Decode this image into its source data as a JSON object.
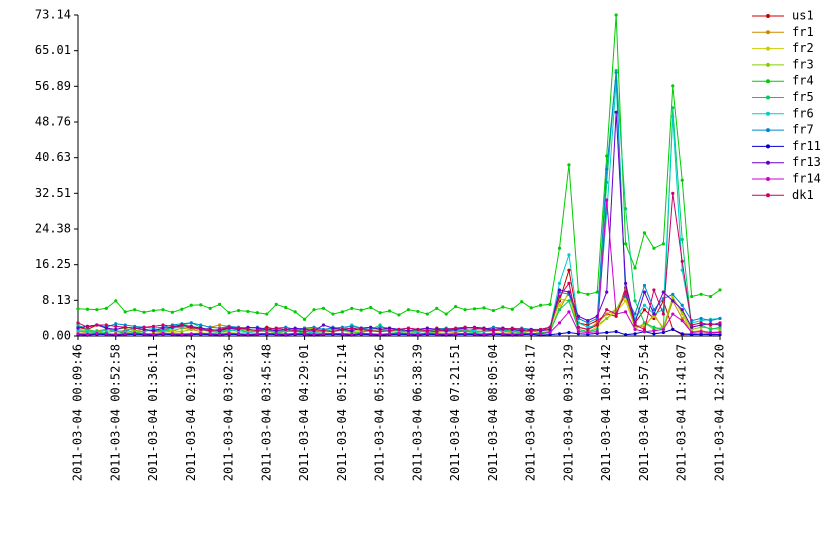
{
  "chart_data": {
    "type": "line",
    "categories": [
      "2011-03-04 00:09:46",
      null,
      null,
      null,
      "2011-03-04 00:52:58",
      null,
      null,
      null,
      "2011-03-04 01:36:11",
      null,
      null,
      null,
      "2011-03-04 02:19:23",
      null,
      null,
      null,
      "2011-03-04 03:02:36",
      null,
      null,
      null,
      "2011-03-04 03:45:48",
      null,
      null,
      null,
      "2011-03-04 04:29:01",
      null,
      null,
      null,
      "2011-03-04 05:12:14",
      null,
      null,
      null,
      "2011-03-04 05:55:26",
      null,
      null,
      null,
      "2011-03-04 06:38:39",
      null,
      null,
      null,
      "2011-03-04 07:21:51",
      null,
      null,
      null,
      "2011-03-04 08:05:04",
      null,
      null,
      null,
      "2011-03-04 08:48:17",
      null,
      null,
      null,
      "2011-03-04 09:31:29",
      null,
      null,
      null,
      "2011-03-04 10:14:42",
      null,
      null,
      null,
      "2011-03-04 10:57:54",
      null,
      null,
      null,
      "2011-03-04 11:41:07",
      null,
      null,
      null,
      "2011-03-04 12:24:20"
    ],
    "ylim": [
      0,
      73.14
    ],
    "yticks": [
      {
        "value": 0,
        "label": "0.00"
      },
      8.13,
      16.25,
      24.38,
      32.51,
      40.63,
      48.76,
      56.89,
      65.01,
      73.14
    ],
    "grid": false,
    "legend": "right",
    "series": [
      {
        "name": "us1",
        "color": "#cc0000",
        "values": [
          2.0,
          1.5,
          2.5,
          2.0,
          1.0,
          1.2,
          1.8,
          1.5,
          1.0,
          1.3,
          2.0,
          2.2,
          1.8,
          1.5,
          1.0,
          1.2,
          2.0,
          1.8,
          1.5,
          1.3,
          2.0,
          1.5,
          1.2,
          1.0,
          1.8,
          1.5,
          1.2,
          2.0,
          1.5,
          1.8,
          1.2,
          1.0,
          1.5,
          1.8,
          1.3,
          1.2,
          1.5,
          1.0,
          1.8,
          1.5,
          1.3,
          1.2,
          1.5,
          1.8,
          1.3,
          1.5,
          1.2,
          1.0,
          1.5,
          1.2,
          2.0,
          8.0,
          15.0,
          3.0,
          2.5,
          3.5,
          5.0,
          4.5,
          11.0,
          3.0,
          6.0,
          4.0,
          8.0,
          1.5,
          0.3,
          0.5,
          0.4,
          0.5,
          0.3
        ]
      },
      {
        "name": "fr1",
        "color": "#cc8800",
        "values": [
          1.0,
          0.8,
          1.2,
          1.5,
          1.0,
          0.8,
          1.2,
          1.5,
          1.0,
          0.8,
          1.2,
          1.8,
          1.5,
          1.0,
          2.0,
          2.5,
          2.2,
          1.8,
          1.5,
          1.2,
          1.0,
          1.5,
          1.2,
          1.0,
          0.8,
          1.2,
          1.0,
          1.5,
          1.2,
          1.0,
          0.8,
          1.2,
          1.5,
          1.0,
          0.8,
          1.2,
          1.0,
          1.5,
          1.2,
          1.0,
          0.8,
          1.2,
          1.0,
          1.2,
          1.5,
          1.0,
          0.8,
          1.2,
          1.0,
          1.5,
          1.2,
          6.0,
          10.0,
          2.0,
          1.5,
          3.0,
          5.0,
          6.0,
          9.0,
          2.5,
          2.0,
          5.0,
          1.5,
          8.0,
          4.0,
          1.0,
          1.2,
          0.8,
          1.0
        ]
      },
      {
        "name": "fr2",
        "color": "#cccc00",
        "values": [
          0.5,
          0.6,
          0.8,
          0.5,
          0.4,
          0.6,
          0.8,
          0.5,
          0.6,
          0.4,
          0.8,
          0.6,
          0.5,
          0.7,
          0.6,
          0.5,
          0.8,
          0.6,
          0.4,
          0.5,
          0.6,
          0.8,
          0.5,
          0.6,
          0.4,
          0.5,
          0.7,
          0.6,
          0.5,
          0.8,
          0.6,
          0.5,
          0.4,
          0.6,
          0.5,
          0.7,
          0.6,
          0.5,
          0.8,
          0.6,
          0.5,
          0.4,
          0.6,
          0.5,
          0.7,
          0.6,
          0.5,
          0.8,
          0.6,
          0.7,
          0.8,
          7.0,
          9.5,
          1.5,
          1.0,
          2.0,
          4.0,
          5.5,
          8.0,
          2.0,
          2.5,
          4.5,
          2.0,
          9.0,
          5.0,
          0.8,
          1.0,
          0.6,
          0.8
        ]
      },
      {
        "name": "fr3",
        "color": "#88cc00",
        "values": [
          1.5,
          1.2,
          1.0,
          1.3,
          1.5,
          1.8,
          1.2,
          1.0,
          1.5,
          1.3,
          1.2,
          1.0,
          1.5,
          1.8,
          1.2,
          1.0,
          1.3,
          1.5,
          1.2,
          1.0,
          1.5,
          1.3,
          1.2,
          1.0,
          1.5,
          1.8,
          1.2,
          1.0,
          1.3,
          1.5,
          1.2,
          1.0,
          1.5,
          1.3,
          1.2,
          1.0,
          1.5,
          1.8,
          1.2,
          1.0,
          1.3,
          1.5,
          1.2,
          1.0,
          1.5,
          1.3,
          1.2,
          1.0,
          1.5,
          1.2,
          1.5,
          8.5,
          8.0,
          2.0,
          1.5,
          2.5,
          4.0,
          6.0,
          10.0,
          1.5,
          3.0,
          1.5,
          2.0,
          8.5,
          5.5,
          1.5,
          2.0,
          1.8,
          1.5
        ]
      },
      {
        "name": "fr4",
        "color": "#00cc00",
        "values": [
          6.2,
          6.1,
          6.0,
          6.3,
          8.0,
          5.5,
          6.0,
          5.4,
          5.8,
          6.0,
          5.4,
          6.1,
          7.0,
          7.1,
          6.3,
          7.2,
          5.3,
          5.8,
          5.6,
          5.3,
          5.0,
          7.2,
          6.5,
          5.5,
          3.8,
          6.0,
          6.3,
          5.0,
          5.5,
          6.3,
          5.9,
          6.5,
          5.3,
          5.7,
          4.8,
          6.0,
          5.6,
          5.0,
          6.3,
          5.0,
          6.7,
          6.0,
          6.2,
          6.4,
          5.8,
          6.6,
          6.1,
          7.8,
          6.4,
          7.0,
          7.2,
          20.0,
          39.0,
          10.0,
          9.5,
          10.0,
          41.0,
          73.14,
          21.0,
          15.5,
          23.5,
          20.0,
          21.0,
          57.0,
          35.5,
          9.0,
          9.5,
          9.0,
          10.5
        ]
      },
      {
        "name": "fr5",
        "color": "#00cc66",
        "values": [
          2.5,
          1.5,
          1.0,
          0.8,
          1.2,
          0.5,
          0.8,
          1.0,
          1.5,
          1.2,
          2.0,
          2.5,
          3.0,
          2.0,
          1.0,
          0.8,
          1.2,
          1.5,
          0.8,
          1.0,
          1.2,
          0.8,
          1.0,
          1.2,
          0.5,
          0.8,
          1.0,
          1.5,
          1.2,
          1.0,
          0.8,
          1.5,
          2.5,
          1.0,
          0.8,
          1.0,
          1.2,
          0.8,
          1.0,
          1.5,
          1.2,
          1.0,
          0.8,
          1.0,
          1.2,
          1.5,
          1.0,
          0.8,
          1.2,
          0.8,
          1.0,
          6.0,
          8.0,
          1.5,
          1.0,
          1.5,
          35.0,
          60.5,
          29.0,
          8.0,
          3.0,
          2.0,
          1.5,
          52.0,
          22.0,
          2.0,
          2.5,
          1.5,
          2.0
        ]
      },
      {
        "name": "fr6",
        "color": "#00cccc",
        "values": [
          1.2,
          1.0,
          0.8,
          1.5,
          1.2,
          1.0,
          1.8,
          1.5,
          1.2,
          1.0,
          1.8,
          2.0,
          2.2,
          1.5,
          1.0,
          1.2,
          1.5,
          1.0,
          0.8,
          1.2,
          1.5,
          1.0,
          1.2,
          1.5,
          1.0,
          0.8,
          1.2,
          2.0,
          1.5,
          2.5,
          1.8,
          1.2,
          1.0,
          1.5,
          1.2,
          1.0,
          0.8,
          1.2,
          1.5,
          1.0,
          1.2,
          1.5,
          1.2,
          1.0,
          1.5,
          1.2,
          1.0,
          1.5,
          1.2,
          1.5,
          2.0,
          12.0,
          18.5,
          3.0,
          2.0,
          2.5,
          28.0,
          58.0,
          10.0,
          4.0,
          7.0,
          5.0,
          6.0,
          50.0,
          15.0,
          3.0,
          3.5,
          3.8,
          4.0
        ]
      },
      {
        "name": "fr7",
        "color": "#0088cc",
        "values": [
          2.0,
          2.2,
          2.5,
          2.0,
          2.8,
          2.5,
          2.2,
          2.0,
          1.8,
          2.0,
          2.5,
          2.8,
          3.0,
          2.5,
          2.0,
          1.8,
          2.2,
          2.0,
          1.8,
          2.0,
          1.5,
          1.8,
          2.0,
          1.5,
          1.8,
          2.0,
          1.5,
          1.8,
          2.0,
          2.2,
          1.8,
          1.5,
          2.0,
          1.8,
          1.5,
          1.8,
          1.5,
          1.2,
          1.5,
          1.8,
          1.5,
          2.0,
          1.8,
          1.5,
          2.0,
          1.8,
          1.5,
          1.8,
          1.5,
          1.5,
          2.0,
          10.0,
          9.5,
          4.0,
          3.0,
          4.0,
          38.0,
          60.0,
          9.0,
          5.0,
          11.5,
          6.0,
          8.5,
          9.5,
          7.0,
          3.5,
          4.0,
          3.5,
          4.0
        ]
      },
      {
        "name": "fr11",
        "color": "#0000cc",
        "values": [
          0.3,
          0.2,
          0.4,
          0.3,
          0.2,
          0.3,
          0.4,
          0.3,
          0.2,
          0.4,
          0.3,
          0.2,
          0.3,
          0.4,
          0.3,
          0.2,
          0.4,
          0.3,
          0.2,
          0.3,
          0.4,
          0.3,
          0.2,
          0.4,
          0.3,
          0.2,
          0.3,
          0.4,
          0.3,
          0.2,
          0.4,
          0.3,
          0.2,
          0.3,
          0.4,
          0.3,
          0.2,
          0.4,
          0.3,
          0.2,
          0.3,
          0.4,
          0.3,
          0.2,
          0.4,
          0.3,
          0.2,
          0.3,
          0.4,
          0.2,
          0.3,
          0.5,
          0.8,
          0.5,
          0.4,
          0.6,
          0.8,
          1.0,
          0.3,
          0.5,
          1.0,
          0.5,
          0.8,
          1.5,
          0.5,
          0.3,
          0.4,
          0.3,
          0.3
        ]
      },
      {
        "name": "fr13",
        "color": "#6600cc",
        "values": [
          1.8,
          2.2,
          2.5,
          1.8,
          1.5,
          2.0,
          1.8,
          1.5,
          1.2,
          1.8,
          2.0,
          2.5,
          2.2,
          1.8,
          1.5,
          1.2,
          1.8,
          1.5,
          2.0,
          1.8,
          1.5,
          1.2,
          1.5,
          1.8,
          1.5,
          1.2,
          2.5,
          1.8,
          1.5,
          1.2,
          1.8,
          2.0,
          1.5,
          1.8,
          1.5,
          1.2,
          1.5,
          1.8,
          1.5,
          1.2,
          1.5,
          1.8,
          2.0,
          1.8,
          1.5,
          1.8,
          1.5,
          1.2,
          1.5,
          1.2,
          1.5,
          10.5,
          10.0,
          4.5,
          3.5,
          4.5,
          10.0,
          51.0,
          12.0,
          3.0,
          10.0,
          5.0,
          10.0,
          8.0,
          6.0,
          2.0,
          2.5,
          2.8,
          2.5
        ]
      },
      {
        "name": "fr14",
        "color": "#cc00cc",
        "values": [
          0.5,
          0.4,
          0.6,
          0.5,
          0.4,
          0.5,
          0.6,
          0.5,
          0.4,
          0.6,
          0.5,
          0.4,
          0.5,
          0.6,
          0.5,
          0.4,
          0.6,
          0.5,
          0.4,
          0.5,
          0.6,
          0.5,
          0.4,
          0.6,
          0.5,
          0.4,
          0.5,
          0.6,
          0.5,
          0.4,
          0.6,
          0.5,
          0.4,
          0.5,
          0.6,
          0.5,
          0.4,
          0.6,
          0.5,
          0.4,
          0.5,
          0.6,
          0.5,
          0.4,
          0.6,
          0.5,
          0.4,
          0.5,
          0.6,
          0.5,
          0.8,
          3.0,
          5.5,
          1.0,
          0.8,
          1.0,
          31.0,
          5.0,
          5.5,
          1.5,
          1.0,
          1.2,
          1.5,
          5.0,
          3.5,
          0.8,
          1.0,
          0.8,
          0.8
        ]
      },
      {
        "name": "dk1",
        "color": "#cc0066",
        "values": [
          3.0,
          2.0,
          2.5,
          2.5,
          2.2,
          2.0,
          1.8,
          2.0,
          2.2,
          2.5,
          2.2,
          2.5,
          2.0,
          1.5,
          1.2,
          1.5,
          2.0,
          1.8,
          1.5,
          1.2,
          1.5,
          1.8,
          1.5,
          1.2,
          1.0,
          1.5,
          1.2,
          1.0,
          1.5,
          1.8,
          1.5,
          1.2,
          1.0,
          1.2,
          1.5,
          1.8,
          1.5,
          1.2,
          1.0,
          1.5,
          1.8,
          2.0,
          1.8,
          1.5,
          1.2,
          1.5,
          1.8,
          1.5,
          1.2,
          1.5,
          2.0,
          9.0,
          12.0,
          2.0,
          1.5,
          2.5,
          6.0,
          5.0,
          10.0,
          2.5,
          1.5,
          10.5,
          5.0,
          32.5,
          17.0,
          2.5,
          3.0,
          2.5,
          3.0
        ]
      }
    ]
  }
}
